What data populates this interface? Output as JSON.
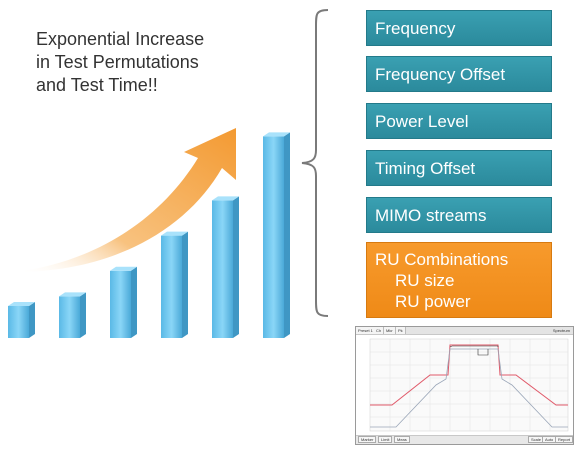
{
  "headline": {
    "lines": [
      "Exponential Increase",
      "in Test Permutations",
      "and Test Time!!"
    ]
  },
  "growth_bars": {
    "count": 6,
    "levels": [
      1,
      1.3,
      2.1,
      3.2,
      4.3,
      6.3
    ],
    "bar_color": "#6ec7f0",
    "arrow_color": "#f4a64a"
  },
  "parameters": {
    "items": [
      {
        "label": "Frequency"
      },
      {
        "label": "Frequency Offset"
      },
      {
        "label": "Power Level"
      },
      {
        "label": "Timing Offset"
      },
      {
        "label": "MIMO streams"
      }
    ],
    "highlight": {
      "label": "RU Combinations",
      "sub_items": [
        "RU size",
        "RU power"
      ]
    },
    "teal_color": "#3399aa",
    "orange_color": "#f39020"
  },
  "spectrum_panel": {
    "tabs": [
      "Preset 1",
      "Ch",
      "Mkr",
      "Pk"
    ],
    "title": "Spectrum",
    "footer_buttons": [
      "Marker",
      "Limit",
      "Meas"
    ],
    "footer_right": [
      "Scale",
      "Auto",
      "Report"
    ]
  }
}
